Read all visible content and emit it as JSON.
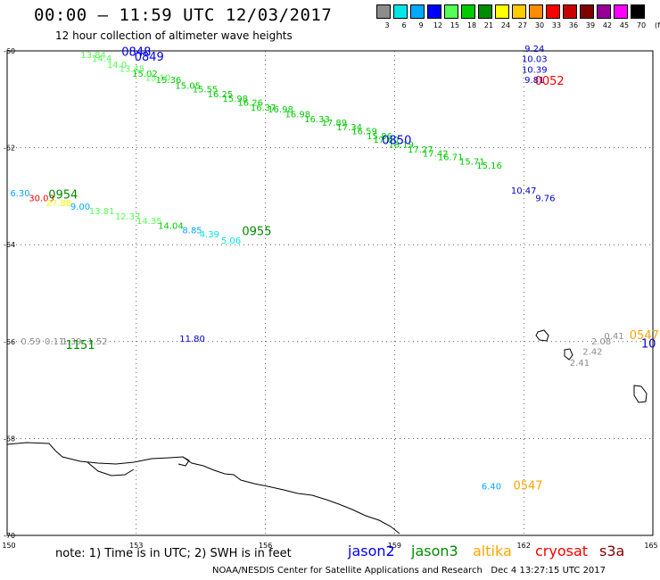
{
  "header": {
    "title": "00:00 – 11:59 UTC 12/03/2017",
    "subtitle": "12 hour collection of altimeter wave heights"
  },
  "legend": {
    "unit": "(ft)",
    "bins": [
      {
        "label": "3",
        "color": "#8c8c8c"
      },
      {
        "label": "6",
        "color": "#00e6e6"
      },
      {
        "label": "9",
        "color": "#00aaff"
      },
      {
        "label": "12",
        "color": "#0000ff"
      },
      {
        "label": "15",
        "color": "#55ff55"
      },
      {
        "label": "18",
        "color": "#00cc00"
      },
      {
        "label": "21",
        "color": "#008c00"
      },
      {
        "label": "24",
        "color": "#ffff00"
      },
      {
        "label": "27",
        "color": "#ffcc00"
      },
      {
        "label": "30",
        "color": "#ff8c00"
      },
      {
        "label": "33",
        "color": "#ff0000"
      },
      {
        "label": "36",
        "color": "#c80000"
      },
      {
        "label": "39",
        "color": "#800000"
      },
      {
        "label": "42",
        "color": "#960096"
      },
      {
        "label": "45",
        "color": "#ff00ff"
      },
      {
        "label": "70",
        "color": "#000000"
      }
    ]
  },
  "axes": {
    "lon_ticks": [
      "150",
      "153",
      "156",
      "159",
      "162",
      "165"
    ],
    "lat_ticks": [
      "-60",
      "-62",
      "-64",
      "-66",
      "-68",
      "-70"
    ]
  },
  "map_data": {
    "lon_range": [
      150,
      165
    ],
    "lat_range": [
      -70,
      -60
    ],
    "observations": [
      {
        "lon": 152.0,
        "lat": -60.15,
        "text": "13.84",
        "color": "#55ff55"
      },
      {
        "lon": 152.2,
        "lat": -60.22,
        "text": "14.4",
        "color": "#55ff55"
      },
      {
        "lon": 152.55,
        "lat": -60.35,
        "text": "14.0",
        "color": "#55ff55"
      },
      {
        "lon": 152.9,
        "lat": -60.43,
        "text": "13.45",
        "color": "#55ff55"
      },
      {
        "lon": 153.2,
        "lat": -60.53,
        "text": "15.02",
        "color": "#00cc00"
      },
      {
        "lon": 153.5,
        "lat": -60.62,
        "text": "15.10",
        "color": "#55ff55"
      },
      {
        "lon": 153.75,
        "lat": -60.66,
        "text": "15.36",
        "color": "#00cc00"
      },
      {
        "lon": 154.2,
        "lat": -60.78,
        "text": "15.05",
        "color": "#00cc00"
      },
      {
        "lon": 154.6,
        "lat": -60.86,
        "text": "15.55",
        "color": "#00cc00"
      },
      {
        "lon": 154.95,
        "lat": -60.96,
        "text": "16.25",
        "color": "#00cc00"
      },
      {
        "lon": 155.3,
        "lat": -61.05,
        "text": "15.98",
        "color": "#00cc00"
      },
      {
        "lon": 155.65,
        "lat": -61.13,
        "text": "16.26",
        "color": "#00cc00"
      },
      {
        "lon": 155.95,
        "lat": -61.23,
        "text": "16.37",
        "color": "#00cc00"
      },
      {
        "lon": 156.35,
        "lat": -61.27,
        "text": "16.98",
        "color": "#00cc00"
      },
      {
        "lon": 156.75,
        "lat": -61.37,
        "text": "16.98",
        "color": "#00cc00"
      },
      {
        "lon": 157.2,
        "lat": -61.47,
        "text": "16.33",
        "color": "#00cc00"
      },
      {
        "lon": 157.6,
        "lat": -61.55,
        "text": "17.89",
        "color": "#00cc00"
      },
      {
        "lon": 157.95,
        "lat": -61.64,
        "text": "17.34",
        "color": "#00cc00"
      },
      {
        "lon": 158.3,
        "lat": -61.72,
        "text": "16.59",
        "color": "#00cc00"
      },
      {
        "lon": 158.65,
        "lat": -61.82,
        "text": "15.86",
        "color": "#00cc00"
      },
      {
        "lon": 158.8,
        "lat": -61.9,
        "text": "17.60",
        "color": "#00cc00"
      },
      {
        "lon": 159.15,
        "lat": -62.0,
        "text": "18.19",
        "color": "#00cc00"
      },
      {
        "lon": 159.6,
        "lat": -62.1,
        "text": "17.27",
        "color": "#00cc00"
      },
      {
        "lon": 159.95,
        "lat": -62.18,
        "text": "17.42",
        "color": "#00cc00"
      },
      {
        "lon": 160.3,
        "lat": -62.26,
        "text": "16.71",
        "color": "#00cc00"
      },
      {
        "lon": 160.8,
        "lat": -62.35,
        "text": "15.71",
        "color": "#00cc00"
      },
      {
        "lon": 161.2,
        "lat": -62.43,
        "text": "15.16",
        "color": "#00cc00"
      },
      {
        "lon": 162.25,
        "lat": -60.02,
        "text": "9.24",
        "color": "#0000cc"
      },
      {
        "lon": 162.25,
        "lat": -60.23,
        "text": "10.03",
        "color": "#0000cc"
      },
      {
        "lon": 162.25,
        "lat": -60.45,
        "text": "10.39",
        "color": "#0000cc"
      },
      {
        "lon": 162.25,
        "lat": -60.66,
        "text": "9.81",
        "color": "#0000cc"
      },
      {
        "lon": 162.0,
        "lat": -62.95,
        "text": "10.47",
        "color": "#0000cc"
      },
      {
        "lon": 162.5,
        "lat": -63.1,
        "text": "9.76",
        "color": "#0000cc"
      },
      {
        "lon": 150.3,
        "lat": -63.0,
        "text": "6.30",
        "color": "#00aaff"
      },
      {
        "lon": 150.8,
        "lat": -63.1,
        "text": "30.03",
        "color": "#ff0000"
      },
      {
        "lon": 151.2,
        "lat": -63.2,
        "text": "27.88",
        "color": "#ffff00"
      },
      {
        "lon": 151.7,
        "lat": -63.28,
        "text": "9.00",
        "color": "#00aaff"
      },
      {
        "lon": 152.2,
        "lat": -63.37,
        "text": "13.81",
        "color": "#55ff55"
      },
      {
        "lon": 152.8,
        "lat": -63.48,
        "text": "12.37",
        "color": "#55ff55"
      },
      {
        "lon": 153.3,
        "lat": -63.57,
        "text": "14.35",
        "color": "#55ff55"
      },
      {
        "lon": 153.8,
        "lat": -63.67,
        "text": "14.04",
        "color": "#00cc00"
      },
      {
        "lon": 154.3,
        "lat": -63.77,
        "text": "8.85",
        "color": "#00aaff"
      },
      {
        "lon": 154.7,
        "lat": -63.85,
        "text": "4.39",
        "color": "#00e6e6"
      },
      {
        "lon": 155.2,
        "lat": -63.98,
        "text": "5.06",
        "color": "#00e6e6"
      },
      {
        "lon": 150.55,
        "lat": -66.06,
        "text": "0.59",
        "color": "#8c8c8c"
      },
      {
        "lon": 151.1,
        "lat": -66.06,
        "text": "0.11",
        "color": "#8c8c8c"
      },
      {
        "lon": 151.5,
        "lat": -66.06,
        "text": "1.39",
        "color": "#8c8c8c"
      },
      {
        "lon": 152.1,
        "lat": -66.06,
        "text": "1.52",
        "color": "#8c8c8c"
      },
      {
        "lon": 154.3,
        "lat": -66.0,
        "text": "11.80",
        "color": "#0000cc"
      },
      {
        "lon": 164.1,
        "lat": -65.95,
        "text": "0.41",
        "color": "#8c8c8c"
      },
      {
        "lon": 163.8,
        "lat": -66.06,
        "text": "2.08",
        "color": "#8c8c8c"
      },
      {
        "lon": 163.6,
        "lat": -66.27,
        "text": "2.42",
        "color": "#8c8c8c"
      },
      {
        "lon": 163.3,
        "lat": -66.5,
        "text": "2.41",
        "color": "#8c8c8c"
      },
      {
        "lon": 161.25,
        "lat": -69.05,
        "text": "6.40",
        "color": "#00aaff"
      }
    ],
    "pass_labels": [
      {
        "lon": 153.0,
        "lat": -60.1,
        "text": "0848",
        "color": "#0000ff"
      },
      {
        "lon": 153.3,
        "lat": -60.2,
        "text": "0849",
        "color": "#0000ff"
      },
      {
        "lon": 162.6,
        "lat": -60.7,
        "text": "0052",
        "color": "#ff0000"
      },
      {
        "lon": 159.05,
        "lat": -61.92,
        "text": "0850",
        "color": "#0000ff"
      },
      {
        "lon": 151.3,
        "lat": -63.05,
        "text": "0954",
        "color": "#008c00"
      },
      {
        "lon": 155.8,
        "lat": -63.8,
        "text": "0955",
        "color": "#008c00"
      },
      {
        "lon": 151.7,
        "lat": -66.15,
        "text": "1151",
        "color": "#008c00"
      },
      {
        "lon": 164.8,
        "lat": -65.95,
        "text": "0547",
        "color": "#ffa500"
      },
      {
        "lon": 164.9,
        "lat": -66.12,
        "text": "10",
        "color": "#0000cc"
      },
      {
        "lon": 162.1,
        "lat": -69.05,
        "text": "0547",
        "color": "#ffa500"
      }
    ]
  },
  "footer": {
    "note": "note: 1) Time is in UTC; 2) SWH is in feet",
    "satellites": [
      {
        "name": "jason2",
        "color": "#0000ff"
      },
      {
        "name": "jason3",
        "color": "#008c00"
      },
      {
        "name": "altika",
        "color": "#ffa500"
      },
      {
        "name": "cryosat",
        "color": "#ff0000"
      },
      {
        "name": "s3a",
        "color": "#800000"
      }
    ],
    "credit": "NOAA/NESDIS Center for Satellite Applications and Research",
    "timestamp": "Dec  4 13:27:15 UTC 2017"
  }
}
